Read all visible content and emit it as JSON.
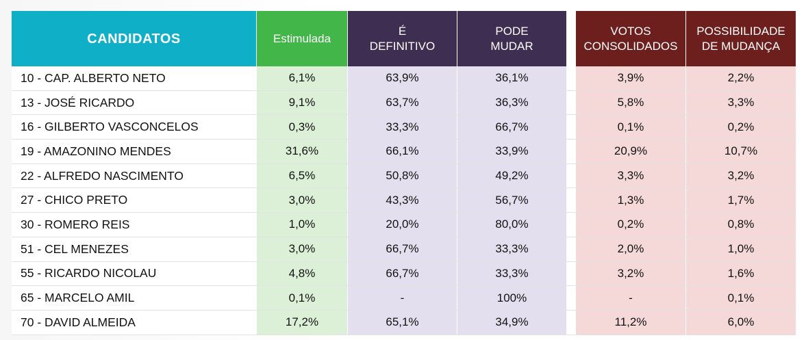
{
  "chart_data": {
    "type": "table",
    "columns": {
      "candidatos": "CANDIDATOS",
      "estimulada": "Estimulada",
      "e_definitivo": [
        "É",
        "DEFINITIVO"
      ],
      "pode_mudar": [
        "PODE",
        "MUDAR"
      ],
      "votos_consolidados": [
        "VOTOS",
        "CONSOLIDADOS"
      ],
      "possibilidade_mudanca": [
        "POSSIBILIDADE",
        "DE MUDANÇA"
      ]
    },
    "rows": [
      {
        "candidato": "10 - CAP. ALBERTO NETO",
        "estimulada": "6,1%",
        "definitivo": "63,9%",
        "pode_mudar": "36,1%",
        "votos_consolidados": "3,9%",
        "possibilidade": "2,2%"
      },
      {
        "candidato": "13 - JOSÉ RICARDO",
        "estimulada": "9,1%",
        "definitivo": "63,7%",
        "pode_mudar": "36,3%",
        "votos_consolidados": "5,8%",
        "possibilidade": "3,3%"
      },
      {
        "candidato": "16 - GILBERTO VASCONCELOS",
        "estimulada": "0,3%",
        "definitivo": "33,3%",
        "pode_mudar": "66,7%",
        "votos_consolidados": "0,1%",
        "possibilidade": "0,2%"
      },
      {
        "candidato": "19 - AMAZONINO MENDES",
        "estimulada": "31,6%",
        "definitivo": "66,1%",
        "pode_mudar": "33,9%",
        "votos_consolidados": "20,9%",
        "possibilidade": "10,7%"
      },
      {
        "candidato": "22 - ALFREDO NASCIMENTO",
        "estimulada": "6,5%",
        "definitivo": "50,8%",
        "pode_mudar": "49,2%",
        "votos_consolidados": "3,3%",
        "possibilidade": "3,2%"
      },
      {
        "candidato": "27 - CHICO PRETO",
        "estimulada": "3,0%",
        "definitivo": "43,3%",
        "pode_mudar": "56,7%",
        "votos_consolidados": "1,3%",
        "possibilidade": "1,7%"
      },
      {
        "candidato": "30 - ROMERO REIS",
        "estimulada": "1,0%",
        "definitivo": "20,0%",
        "pode_mudar": "80,0%",
        "votos_consolidados": "0,2%",
        "possibilidade": "0,8%"
      },
      {
        "candidato": "51 - CEL MENEZES",
        "estimulada": "3,0%",
        "definitivo": "66,7%",
        "pode_mudar": "33,3%",
        "votos_consolidados": "2,0%",
        "possibilidade": "1,0%"
      },
      {
        "candidato": "55 - RICARDO NICOLAU",
        "estimulada": "4,8%",
        "definitivo": "66,7%",
        "pode_mudar": "33,3%",
        "votos_consolidados": "3,2%",
        "possibilidade": "1,6%"
      },
      {
        "candidato": "65 - MARCELO AMIL",
        "estimulada": "0,1%",
        "definitivo": "-",
        "pode_mudar": "100%",
        "votos_consolidados": "-",
        "possibilidade": "0,1%"
      },
      {
        "candidato": "70 - DAVID ALMEIDA",
        "estimulada": "17,2%",
        "definitivo": "65,1%",
        "pode_mudar": "34,9%",
        "votos_consolidados": "11,2%",
        "possibilidade": "6,0%"
      }
    ]
  },
  "colors": {
    "candidatos_header": "#0fb0c7",
    "estimulada_header": "#43b649",
    "definitivo_header": "#3e2e51",
    "votos_header": "#6d1f1e",
    "estimulada_cell": "#dcefd7",
    "definitivo_cell": "#e3dfee",
    "votos_cell": "#f5d9d9"
  }
}
